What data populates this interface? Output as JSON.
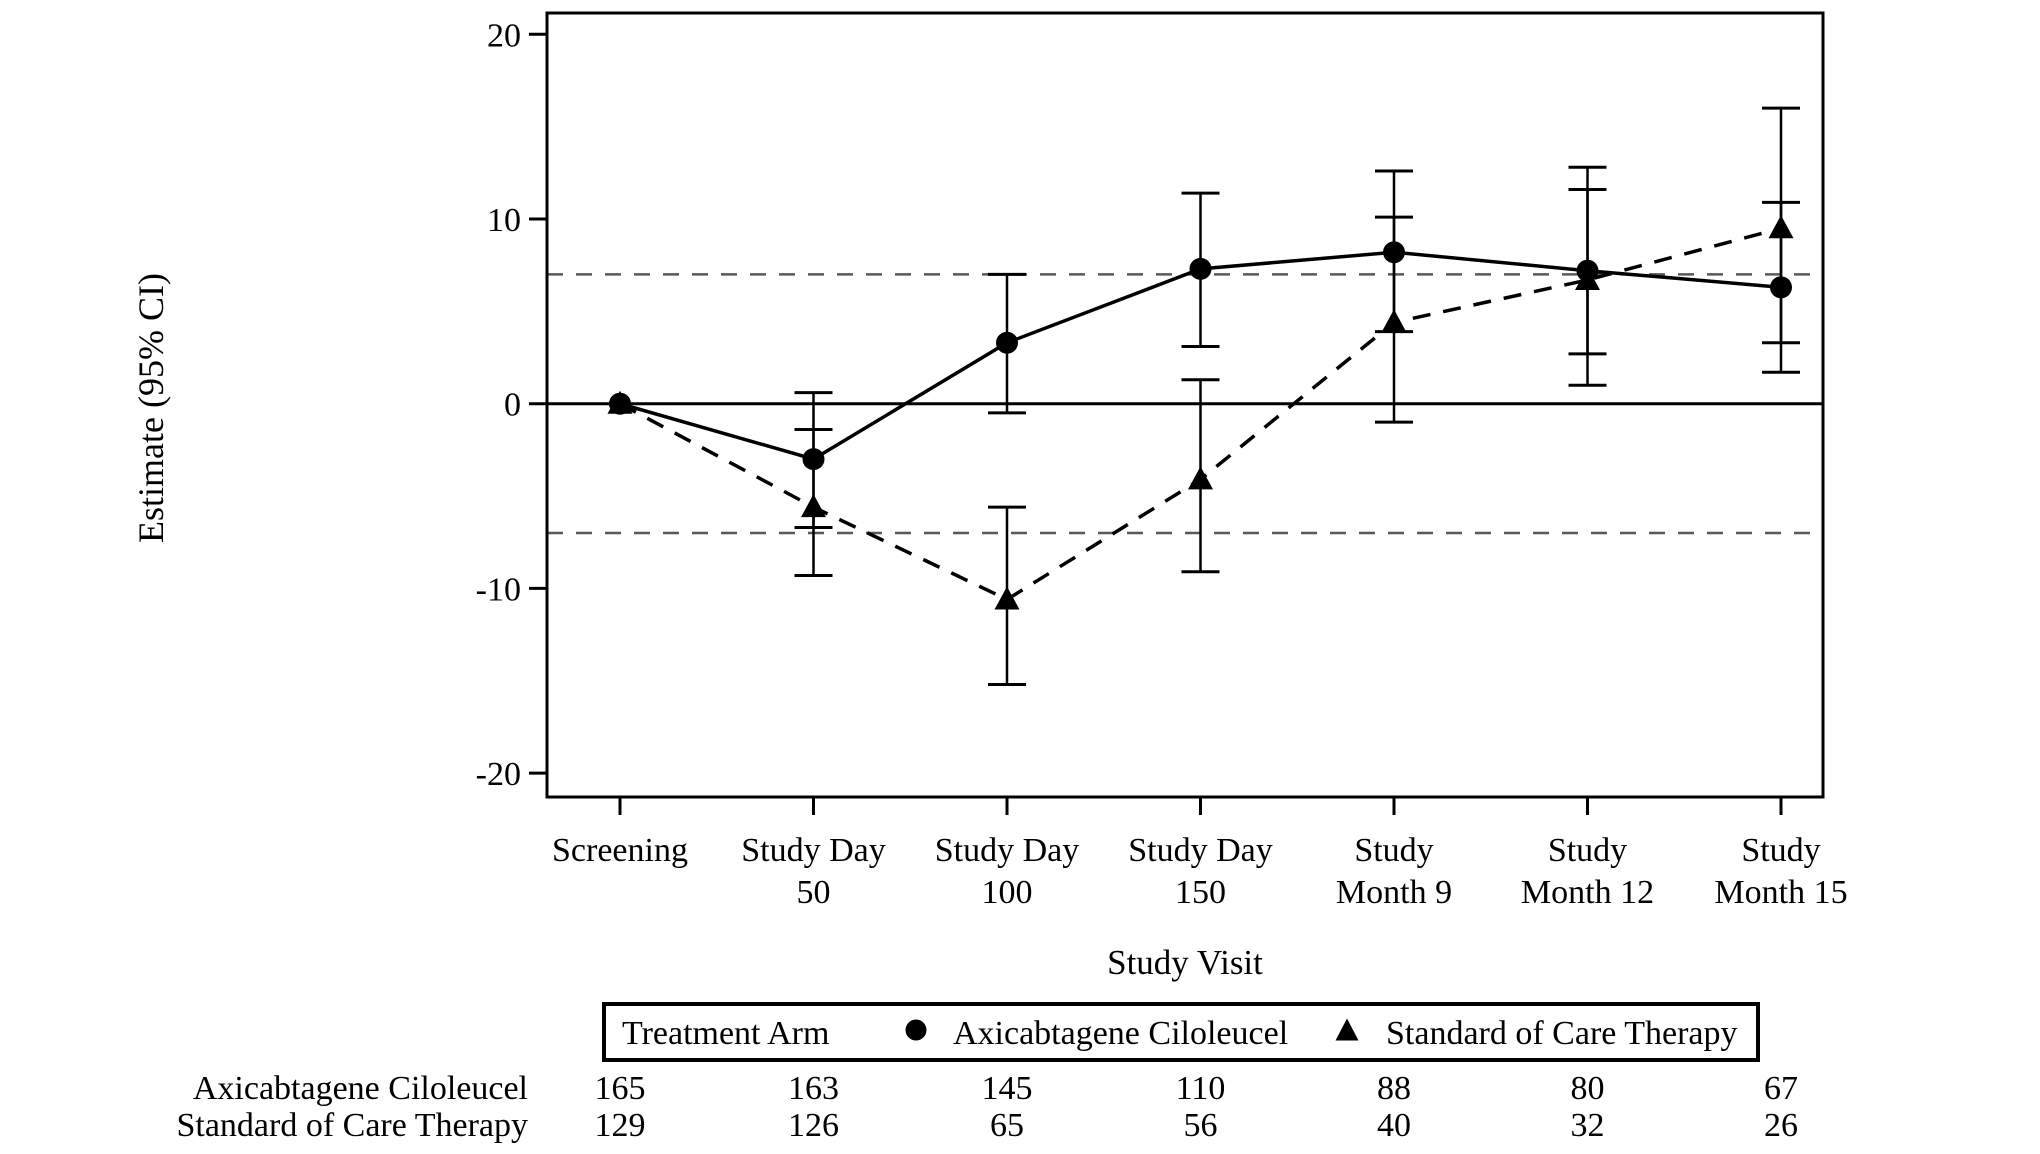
{
  "figure": {
    "background": "#ffffff",
    "foreground": "#000000",
    "reference_line_color": "#595959"
  },
  "chart_data": {
    "type": "line",
    "title": "",
    "ylabel": "Estimate (95% CI)",
    "xlabel": "Study Visit",
    "y_ticks": [
      20,
      10,
      0,
      -10,
      -20
    ],
    "ylim": [
      -21.3,
      21.2
    ],
    "grid": false,
    "zero_line": true,
    "reference_lines": {
      "values": [
        7,
        -7
      ],
      "style": "dashed"
    },
    "visits": [
      {
        "label": "Screening",
        "lines": [
          "Screening"
        ]
      },
      {
        "label": "Study Day 50",
        "lines": [
          "Study Day",
          "50"
        ]
      },
      {
        "label": "Study Day 100",
        "lines": [
          "Study Day",
          "100"
        ]
      },
      {
        "label": "Study Day 150",
        "lines": [
          "Study Day",
          "150"
        ]
      },
      {
        "label": "Study Month 9",
        "lines": [
          "Study",
          "Month 9"
        ]
      },
      {
        "label": "Study Month 12",
        "lines": [
          "Study",
          "Month 12"
        ]
      },
      {
        "label": "Study Month 15",
        "lines": [
          "Study",
          "Month 15"
        ]
      }
    ],
    "series": [
      {
        "name": "Axicabtagene Ciloleucel",
        "marker": "circle",
        "line_style": "solid",
        "estimates": [
          0,
          -3.0,
          3.3,
          7.3,
          8.2,
          7.2,
          6.3
        ],
        "ci_lower": [
          null,
          -6.7,
          -0.5,
          3.1,
          3.9,
          2.7,
          1.7
        ],
        "ci_upper": [
          null,
          0.6,
          7.0,
          11.4,
          12.6,
          11.6,
          10.9
        ]
      },
      {
        "name": "Standard of Care Therapy",
        "marker": "triangle",
        "line_style": "dashed",
        "estimates": [
          0,
          -5.6,
          -10.6,
          -4.1,
          4.4,
          6.7,
          9.5
        ],
        "ci_lower": [
          null,
          -9.3,
          -15.2,
          -9.1,
          -1.0,
          1.0,
          3.3
        ],
        "ci_upper": [
          null,
          -1.4,
          -5.6,
          1.3,
          10.1,
          12.8,
          16.0
        ]
      }
    ],
    "legend": {
      "title": "Treatment Arm",
      "position": "bottom",
      "entries": [
        {
          "marker": "circle",
          "label": "Axicabtagene Ciloleucel"
        },
        {
          "marker": "triangle",
          "label": "Standard of Care Therapy"
        }
      ]
    },
    "at_risk_table": {
      "rows": [
        {
          "label": "Axicabtagene Ciloleucel",
          "values": [
            165,
            163,
            145,
            110,
            88,
            80,
            67
          ]
        },
        {
          "label": "Standard of Care Therapy",
          "values": [
            129,
            126,
            65,
            56,
            40,
            32,
            26
          ]
        }
      ]
    }
  }
}
